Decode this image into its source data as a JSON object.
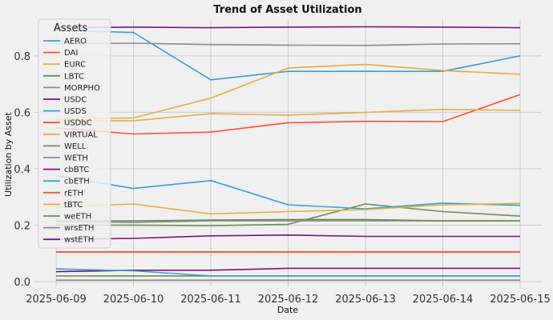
{
  "chart_data": {
    "type": "line",
    "title": "Trend of Asset Utilization",
    "xlabel": "Date",
    "ylabel": "Utilization by Asset",
    "x": [
      "2025-06-09",
      "2025-06-10",
      "2025-06-11",
      "2025-06-12",
      "2025-06-13",
      "2025-06-14",
      "2025-06-15"
    ],
    "yticks": [
      "0.0",
      "0.2",
      "0.4",
      "0.6",
      "0.8"
    ],
    "ylim": [
      -0.02,
      0.93
    ],
    "grid": true,
    "legend": {
      "title": "Assets",
      "position": "top-left"
    },
    "series": [
      {
        "name": "AERO",
        "color": "#30a2da",
        "values": [
          0.89,
          0.883,
          0.715,
          0.745,
          0.745,
          0.745,
          0.8
        ]
      },
      {
        "name": "DAI",
        "color": "#fc4f30",
        "values": [
          0.105,
          0.105,
          0.105,
          0.105,
          0.105,
          0.105,
          0.105
        ]
      },
      {
        "name": "EURC",
        "color": "#e5ae38",
        "values": [
          0.575,
          0.58,
          0.65,
          0.757,
          0.77,
          0.748,
          0.735
        ]
      },
      {
        "name": "LBTC",
        "color": "#6d904f",
        "values": [
          0.02,
          0.02,
          0.02,
          0.02,
          0.02,
          0.02,
          0.02
        ]
      },
      {
        "name": "MORPHO",
        "color": "#8b8b8b",
        "values": [
          0.843,
          0.845,
          0.84,
          0.838,
          0.837,
          0.842,
          0.843
        ]
      },
      {
        "name": "USDC",
        "color": "#810f7c",
        "values": [
          0.035,
          0.04,
          0.04,
          0.047,
          0.047,
          0.047,
          0.047
        ]
      },
      {
        "name": "USDS",
        "color": "#30a2da",
        "values": [
          0.045,
          0.038,
          0.02,
          0.02,
          0.02,
          0.02,
          0.02
        ]
      },
      {
        "name": "USDbC",
        "color": "#fc4f30",
        "values": [
          0.545,
          0.523,
          0.53,
          0.563,
          0.568,
          0.567,
          0.663
        ]
      },
      {
        "name": "VIRTUAL",
        "color": "#e5ae38",
        "values": [
          0.57,
          0.57,
          0.595,
          0.59,
          0.6,
          0.61,
          0.607
        ]
      },
      {
        "name": "WELL",
        "color": "#6d904f",
        "values": [
          0.2,
          0.2,
          0.198,
          0.203,
          0.275,
          0.248,
          0.232
        ]
      },
      {
        "name": "WETH",
        "color": "#8b8b8b",
        "values": [
          0.212,
          0.21,
          0.215,
          0.215,
          0.215,
          0.215,
          0.215
        ]
      },
      {
        "name": "cbBTC",
        "color": "#810f7c",
        "values": [
          0.9,
          0.902,
          0.9,
          0.902,
          0.903,
          0.902,
          0.9
        ]
      },
      {
        "name": "cbETH",
        "color": "#30a2da",
        "values": [
          0.375,
          0.33,
          0.358,
          0.272,
          0.258,
          0.278,
          0.27
        ]
      },
      {
        "name": "rETH",
        "color": "#fc4f30",
        "values": [
          0.105,
          0.105,
          0.105,
          0.105,
          0.105,
          0.105,
          0.105
        ]
      },
      {
        "name": "tBTC",
        "color": "#e5ae38",
        "values": [
          0.265,
          0.275,
          0.24,
          0.248,
          0.255,
          0.272,
          0.277
        ]
      },
      {
        "name": "weETH",
        "color": "#6d904f",
        "values": [
          0.215,
          0.215,
          0.218,
          0.22,
          0.22,
          0.215,
          0.215
        ]
      },
      {
        "name": "wrsETH",
        "color": "#8b8b8b",
        "values": [
          0.005,
          0.005,
          0.005,
          0.005,
          0.005,
          0.005,
          0.005
        ]
      },
      {
        "name": "wstETH",
        "color": "#810f7c",
        "values": [
          0.15,
          0.153,
          0.162,
          0.165,
          0.16,
          0.16,
          0.16
        ]
      }
    ]
  }
}
